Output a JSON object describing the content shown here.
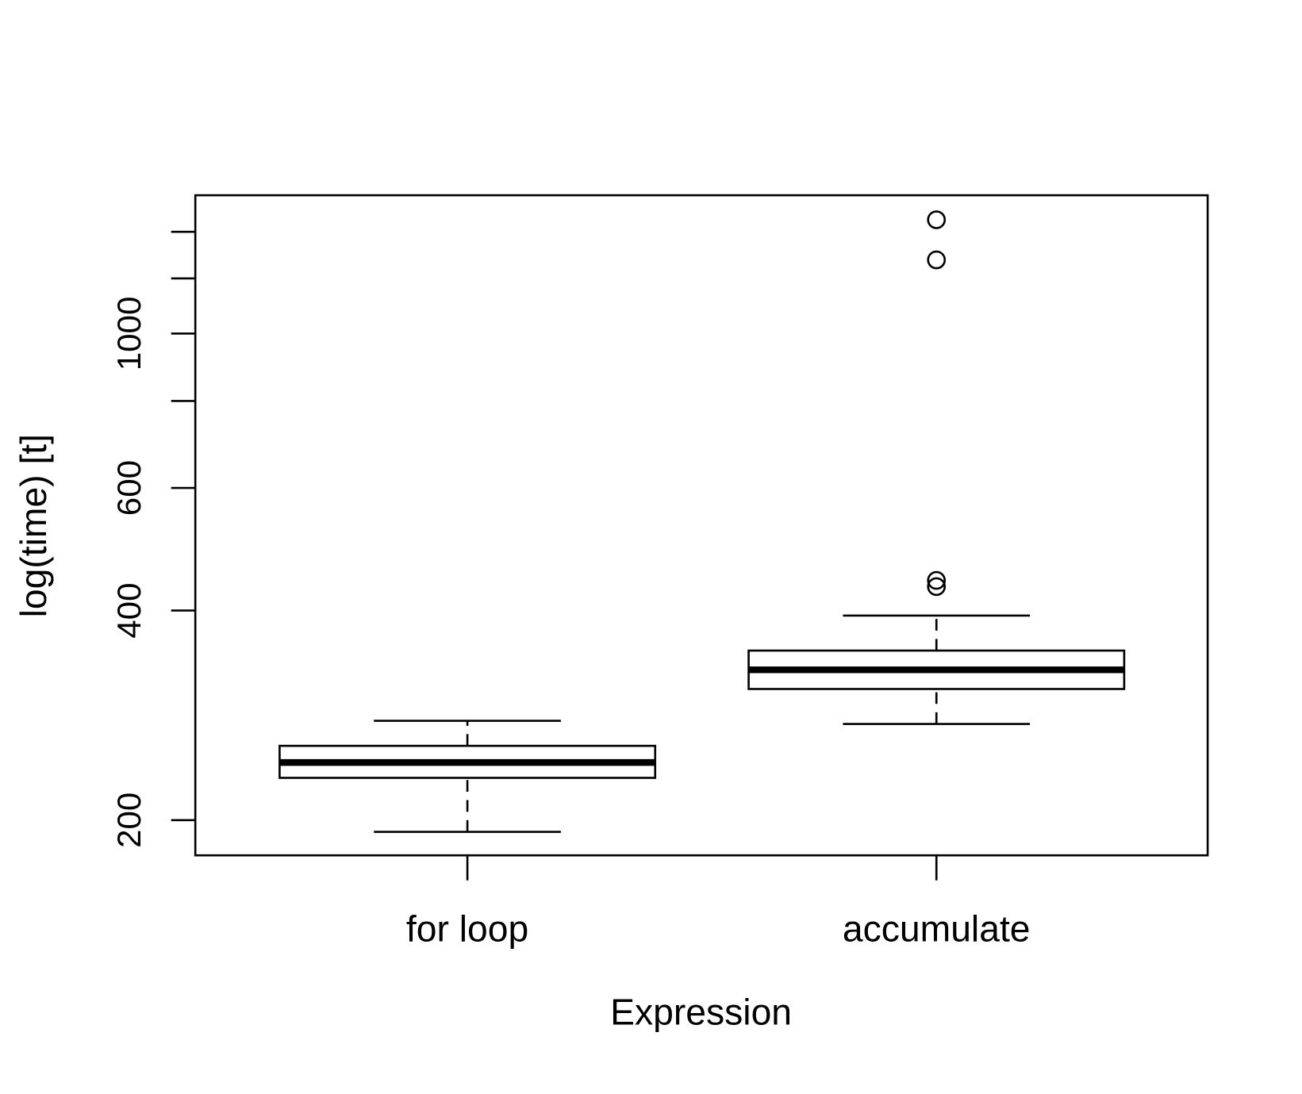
{
  "chart_data": {
    "type": "boxplot",
    "x_label": "Expression",
    "y_label": "log(time) [t]",
    "categories": [
      "for loop",
      "accumulate"
    ],
    "boxes": [
      {
        "min": 192.4,
        "q1": 230,
        "median": 242,
        "q3": 255.7,
        "max": 277.8,
        "outliers": []
      },
      {
        "min": 274.9,
        "q1": 308.6,
        "median": 328.8,
        "q3": 350.4,
        "max": 393.4,
        "outliers": [
          1457,
          1276,
          442,
          433
        ]
      }
    ],
    "y_log": true,
    "ylim": [
      178,
      1580
    ],
    "yticks": [
      200,
      400,
      600,
      1000
    ],
    "y_minor_ticks": [
      800,
      1200,
      1400
    ],
    "color": "#000000"
  }
}
